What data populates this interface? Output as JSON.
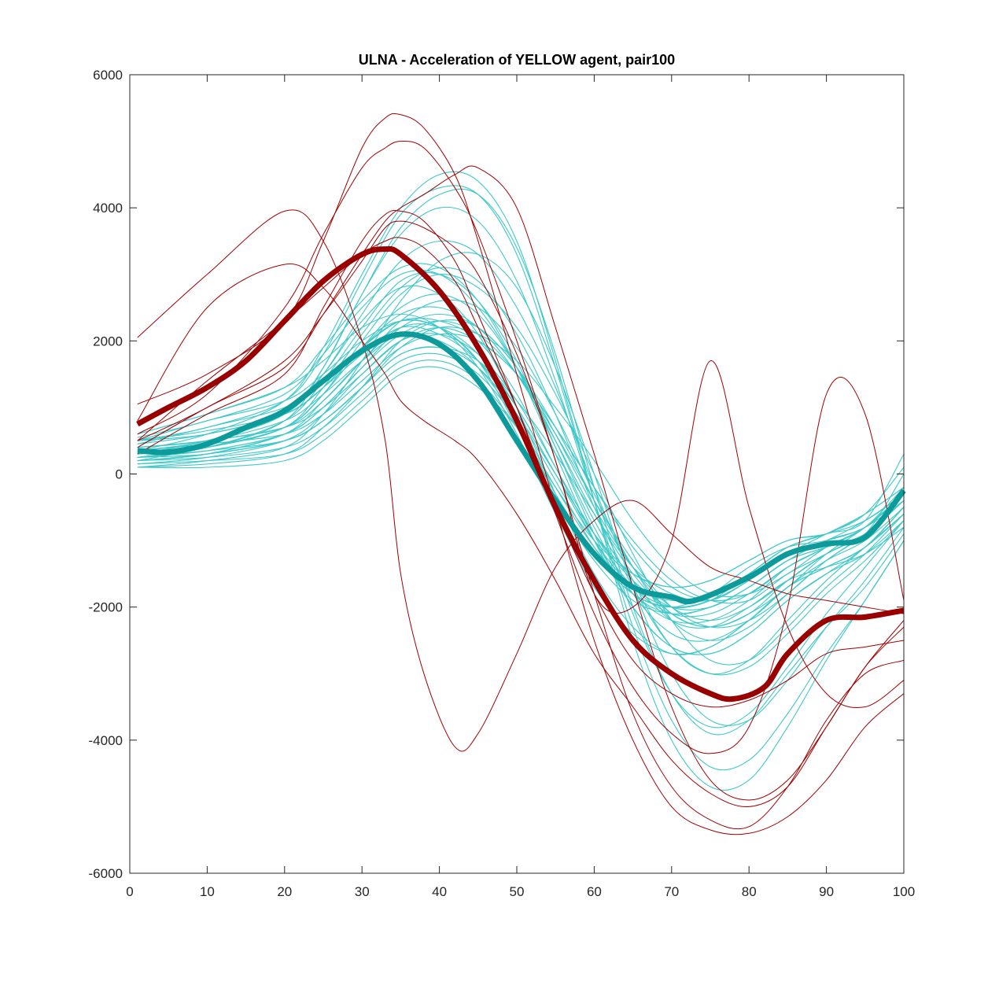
{
  "chart_data": {
    "type": "line",
    "title": "ULNA - Acceleration of YELLOW agent, pair100",
    "xlabel": "",
    "ylabel": "",
    "xlim": [
      0,
      100
    ],
    "ylim": [
      -6000,
      6000
    ],
    "xticks": [
      0,
      10,
      20,
      30,
      40,
      50,
      60,
      70,
      80,
      90,
      100
    ],
    "yticks": [
      -6000,
      -4000,
      -2000,
      0,
      2000,
      4000,
      6000
    ],
    "xtick_labels": [
      "0",
      "10",
      "20",
      "30",
      "40",
      "50",
      "60",
      "70",
      "80",
      "90",
      "100"
    ],
    "ytick_labels": [
      "-6000",
      "-4000",
      "-2000",
      "0",
      "2000",
      "4000",
      "6000"
    ],
    "grid": false,
    "legend": "none",
    "colors": {
      "cyan_trials": "#3ec8c8",
      "red_trials": "#a00000",
      "cyan_mean": "#0d9a9a",
      "red_mean": "#990000"
    },
    "series": [
      {
        "group": "cyan-mean",
        "x": [
          1,
          5,
          10,
          15,
          20,
          25,
          30,
          35,
          40,
          45,
          50,
          55,
          60,
          65,
          70,
          73,
          80,
          85,
          90,
          95,
          100
        ],
        "values": [
          350,
          330,
          450,
          700,
          950,
          1400,
          1850,
          2100,
          1950,
          1400,
          500,
          -400,
          -1200,
          -1700,
          -1850,
          -1900,
          -1550,
          -1200,
          -1050,
          -950,
          -250
        ]
      },
      {
        "group": "red-mean",
        "x": [
          1,
          5,
          10,
          15,
          20,
          25,
          30,
          33,
          35,
          40,
          45,
          50,
          55,
          60,
          65,
          70,
          75,
          78,
          82,
          85,
          90,
          95,
          100
        ],
        "values": [
          750,
          1000,
          1300,
          1700,
          2300,
          2900,
          3300,
          3380,
          3300,
          2750,
          1900,
          800,
          -500,
          -1600,
          -2500,
          -3000,
          -3300,
          -3380,
          -3200,
          -2700,
          -2200,
          -2150,
          -2050
        ]
      },
      {
        "group": "red-trials",
        "x": [
          1,
          10,
          20,
          25,
          30,
          33,
          35,
          38,
          42,
          45,
          50,
          55,
          60,
          65,
          70,
          75,
          80,
          85,
          90,
          95,
          100
        ],
        "values": [
          [
            1050,
            1500,
            2300,
            3500,
            4900,
            5350,
            5400,
            5200,
            4500,
            3500,
            1500,
            -500,
            -2500,
            -4000,
            -5000,
            -5350,
            -5400,
            -5150,
            -4600,
            -3800,
            -3300
          ],
          [
            600,
            1200,
            2500,
            3600,
            4600,
            4900,
            5000,
            4900,
            4300,
            3600,
            2000,
            200,
            -1800,
            -3600,
            -4700,
            -5200,
            -5300,
            -4700,
            -3700,
            -3000,
            -2800
          ],
          [
            2050,
            3000,
            3950,
            3500,
            2000,
            500,
            -1500,
            -3000,
            -4100,
            -3900,
            -2700,
            -1400,
            -700,
            -400,
            -900,
            -1400,
            -1600,
            -1800,
            -1900,
            -2000,
            -2100
          ],
          [
            400,
            1000,
            1600,
            2400,
            3300,
            3800,
            4000,
            4200,
            4500,
            4600,
            4000,
            2200,
            300,
            -1700,
            -3500,
            -4600,
            -4900,
            -4600,
            -3800,
            -2900,
            -2300
          ],
          [
            500,
            1000,
            1700,
            2400,
            3200,
            3700,
            3800,
            3700,
            3400,
            3000,
            1800,
            200,
            -1800,
            -2000,
            -1000,
            1700,
            -500,
            -2300,
            -3300,
            -3500,
            -3100
          ],
          [
            800,
            2500,
            3150,
            2800,
            2000,
            1500,
            1100,
            800,
            500,
            200,
            -600,
            -1600,
            -2700,
            -3500,
            -4300,
            -4800,
            -5000,
            -4700,
            -3800,
            -2900,
            -2200
          ],
          [
            300,
            900,
            1500,
            2500,
            3500,
            3900,
            3950,
            3800,
            3200,
            2400,
            1000,
            -600,
            -2100,
            -3200,
            -3900,
            -4200,
            -3800,
            -2000,
            1200,
            900,
            -1900
          ],
          [
            500,
            1400,
            2300,
            2800,
            3300,
            3500,
            3550,
            3400,
            2900,
            2200,
            1000,
            -500,
            -1800,
            -2800,
            -3300,
            -3500,
            -3400,
            -3100,
            -2700,
            -2600,
            -2500
          ]
        ]
      },
      {
        "group": "cyan-trials",
        "x": [
          1,
          10,
          20,
          25,
          30,
          35,
          40,
          45,
          50,
          55,
          60,
          65,
          70,
          75,
          80,
          85,
          90,
          95,
          100
        ],
        "values": [
          [
            250,
            300,
            500,
            800,
            1300,
            1800,
            1900,
            1600,
            900,
            0,
            -900,
            -1500,
            -1700,
            -1600,
            -1300,
            -1000,
            -900,
            -700,
            -300
          ],
          [
            200,
            250,
            400,
            700,
            1200,
            1700,
            1800,
            1500,
            800,
            -200,
            -1100,
            -1700,
            -1900,
            -1800,
            -1400,
            -1100,
            -1000,
            -800,
            -400
          ],
          [
            500,
            600,
            900,
            1300,
            1900,
            2300,
            2200,
            1700,
            700,
            -400,
            -1300,
            -1900,
            -2100,
            -2000,
            -1700,
            -1300,
            -1100,
            -900,
            0
          ],
          [
            100,
            100,
            200,
            500,
            1000,
            1500,
            1600,
            1300,
            700,
            -200,
            -1000,
            -1500,
            -1700,
            -1600,
            -1300,
            -1000,
            -900,
            -600,
            -200
          ],
          [
            400,
            500,
            800,
            1200,
            1700,
            2100,
            2000,
            1600,
            800,
            -300,
            -1200,
            -1800,
            -2000,
            -1800,
            -1500,
            -1100,
            -900,
            -700,
            300
          ],
          [
            300,
            400,
            700,
            1200,
            1900,
            2500,
            2700,
            2400,
            1600,
            500,
            -700,
            -1600,
            -2200,
            -2300,
            -2000,
            -1600,
            -1400,
            -1200,
            -800
          ],
          [
            150,
            200,
            300,
            600,
            1100,
            1600,
            1700,
            1400,
            700,
            -300,
            -1200,
            -1800,
            -2000,
            -1900,
            -1600,
            -1200,
            -1000,
            -700,
            -300
          ],
          [
            600,
            900,
            1300,
            1700,
            2200,
            2400,
            2200,
            1600,
            600,
            -600,
            -1700,
            -2400,
            -2700,
            -2600,
            -2200,
            -1700,
            -1400,
            -1100,
            -600
          ],
          [
            350,
            500,
            900,
            1500,
            2300,
            2800,
            2700,
            2100,
            1000,
            -300,
            -1500,
            -2300,
            -2700,
            -2600,
            -2200,
            -1700,
            -1400,
            -1100,
            -500
          ],
          [
            200,
            300,
            600,
            1100,
            1700,
            2200,
            2200,
            1800,
            1000,
            0,
            -1000,
            -1700,
            -2000,
            -1900,
            -1500,
            -1100,
            -900,
            -600,
            100
          ],
          [
            450,
            700,
            1000,
            1400,
            1900,
            2300,
            2300,
            2000,
            1200,
            100,
            -1000,
            -1800,
            -2100,
            -2000,
            -1700,
            -1300,
            -1100,
            -900,
            -400
          ],
          [
            250,
            400,
            800,
            1400,
            2200,
            2900,
            3000,
            2600,
            1700,
            400,
            -900,
            -2000,
            -2600,
            -2700,
            -2400,
            -1900,
            -1500,
            -1100,
            -500
          ],
          [
            300,
            500,
            900,
            1600,
            2700,
            3700,
            4200,
            4200,
            3400,
            1800,
            -200,
            -2000,
            -3300,
            -3900,
            -3700,
            -3000,
            -2300,
            -1700,
            -900
          ],
          [
            500,
            700,
            1100,
            1800,
            2900,
            3900,
            4300,
            4200,
            3300,
            1600,
            -400,
            -2300,
            -3700,
            -4400,
            -4300,
            -3600,
            -2700,
            -1900,
            -1000
          ],
          [
            100,
            200,
            400,
            900,
            1700,
            2600,
            3200,
            3300,
            2800,
            1600,
            0,
            -1700,
            -3000,
            -3700,
            -3700,
            -3100,
            -2300,
            -1600,
            -800
          ],
          [
            350,
            600,
            1100,
            1900,
            3000,
            4000,
            4500,
            4400,
            3500,
            1700,
            -400,
            -2500,
            -4000,
            -4700,
            -4600,
            -3800,
            -2800,
            -1900,
            -1000
          ],
          [
            200,
            400,
            700,
            1200,
            2000,
            2700,
            3000,
            2800,
            2200,
            1200,
            0,
            -1200,
            -2200,
            -2800,
            -2800,
            -2300,
            -1700,
            -1200,
            -600
          ],
          [
            600,
            900,
            1300,
            1900,
            2600,
            3100,
            3100,
            2600,
            1600,
            300,
            -1000,
            -2000,
            -2600,
            -2700,
            -2400,
            -1900,
            -1500,
            -1200,
            -700
          ],
          [
            250,
            350,
            500,
            800,
            1300,
            1900,
            2200,
            2100,
            1700,
            1000,
            200,
            -700,
            -1400,
            -1800,
            -1800,
            -1500,
            -1100,
            -800,
            -300
          ],
          [
            400,
            500,
            700,
            1100,
            1700,
            2300,
            2600,
            2500,
            1900,
            900,
            -300,
            -1400,
            -2200,
            -2500,
            -2300,
            -1800,
            -1300,
            -900,
            -400
          ],
          [
            150,
            250,
            500,
            900,
            1500,
            2000,
            2100,
            1800,
            1100,
            100,
            -900,
            -1700,
            -2100,
            -2100,
            -1800,
            -1400,
            -1100,
            -800,
            -300
          ],
          [
            500,
            800,
            1100,
            1500,
            2000,
            2300,
            2200,
            1700,
            900,
            -100,
            -1100,
            -1800,
            -2200,
            -2200,
            -1900,
            -1400,
            -1100,
            -800,
            -200
          ],
          [
            200,
            300,
            600,
            1000,
            1600,
            2100,
            2300,
            2100,
            1500,
            600,
            -400,
            -1300,
            -2000,
            -2300,
            -2200,
            -1800,
            -1300,
            -900,
            -300
          ],
          [
            300,
            400,
            700,
            1300,
            2100,
            2800,
            3100,
            2900,
            2100,
            900,
            -500,
            -1700,
            -2600,
            -3000,
            -2900,
            -2400,
            -1800,
            -1300,
            -700
          ],
          [
            250,
            400,
            800,
            1600,
            2700,
            3600,
            4000,
            3800,
            2900,
            1400,
            -400,
            -2100,
            -3300,
            -3800,
            -3600,
            -2900,
            -2100,
            -1400,
            -700
          ],
          [
            350,
            450,
            600,
            900,
            1400,
            1900,
            2100,
            2000,
            1500,
            700,
            -200,
            -1000,
            -1600,
            -1900,
            -1900,
            -1500,
            -1200,
            -900,
            -400
          ],
          [
            450,
            600,
            900,
            1300,
            1800,
            2200,
            2100,
            1700,
            1000,
            0,
            -900,
            -1600,
            -2000,
            -2000,
            -1700,
            -1300,
            -1000,
            -800,
            -300
          ],
          [
            200,
            300,
            500,
            800,
            1300,
            1800,
            1900,
            1700,
            1100,
            300,
            -600,
            -1400,
            -1800,
            -1900,
            -1600,
            -1200,
            -900,
            -600,
            -200
          ],
          [
            550,
            800,
            1200,
            1800,
            2500,
            3000,
            3000,
            2500,
            1600,
            400,
            -800,
            -1800,
            -2400,
            -2500,
            -2200,
            -1700,
            -1300,
            -1000,
            -500
          ],
          [
            100,
            150,
            300,
            700,
            1300,
            2000,
            2300,
            2200,
            1600,
            700,
            -400,
            -1400,
            -2100,
            -2300,
            -2100,
            -1700,
            -1200,
            -800,
            -300
          ],
          [
            300,
            500,
            900,
            1500,
            2400,
            3200,
            3500,
            3300,
            2500,
            1300,
            -200,
            -1600,
            -2600,
            -3000,
            -2800,
            -2200,
            -1600,
            -1100,
            -600
          ],
          [
            400,
            500,
            700,
            1000,
            1500,
            2000,
            2200,
            2000,
            1500,
            700,
            -200,
            -1100,
            -1700,
            -1900,
            -1800,
            -1400,
            -1100,
            -800,
            -300
          ],
          [
            250,
            350,
            600,
            1000,
            1600,
            2200,
            2400,
            2200,
            1600,
            600,
            -500,
            -1400,
            -2000,
            -2200,
            -2000,
            -1600,
            -1200,
            -900,
            -400
          ],
          [
            500,
            650,
            900,
            1300,
            1900,
            2400,
            2500,
            2200,
            1500,
            500,
            -600,
            -1500,
            -2100,
            -2300,
            -2100,
            -1600,
            -1200,
            -900,
            -400
          ]
        ]
      }
    ]
  }
}
